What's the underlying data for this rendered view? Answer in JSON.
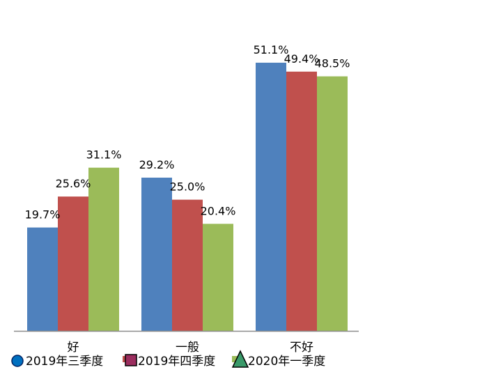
{
  "chart_data": {
    "type": "bar",
    "categories": [
      "好",
      "一般",
      "不好"
    ],
    "series": [
      {
        "name": "2019年三季度",
        "values": [
          19.7,
          29.2,
          51.1
        ],
        "labels": [
          "19.7%",
          "29.2%",
          "51.1%"
        ],
        "color": "#4F81BD"
      },
      {
        "name": "2019年四季度",
        "values": [
          25.6,
          25.0,
          49.4
        ],
        "labels": [
          "25.6%",
          "25.0%",
          "49.4%"
        ],
        "color": "#C0504D"
      },
      {
        "name": "2020年一季度",
        "values": [
          31.1,
          20.4,
          48.5
        ],
        "labels": [
          "31.1%",
          "20.4%",
          "48.5%"
        ],
        "color": "#9BBB59"
      }
    ],
    "ylim": [
      0,
      60
    ],
    "grid": false,
    "legend_position": "bottom",
    "legend_markers": [
      {
        "shape": "circle",
        "fill": "#0070C0",
        "stroke": "#002060"
      },
      {
        "shape": "square",
        "fill": "#9B2D5E",
        "stroke": "#000000"
      },
      {
        "shape": "triangle",
        "fill": "#3A9A6A",
        "stroke": "#000000"
      }
    ]
  }
}
